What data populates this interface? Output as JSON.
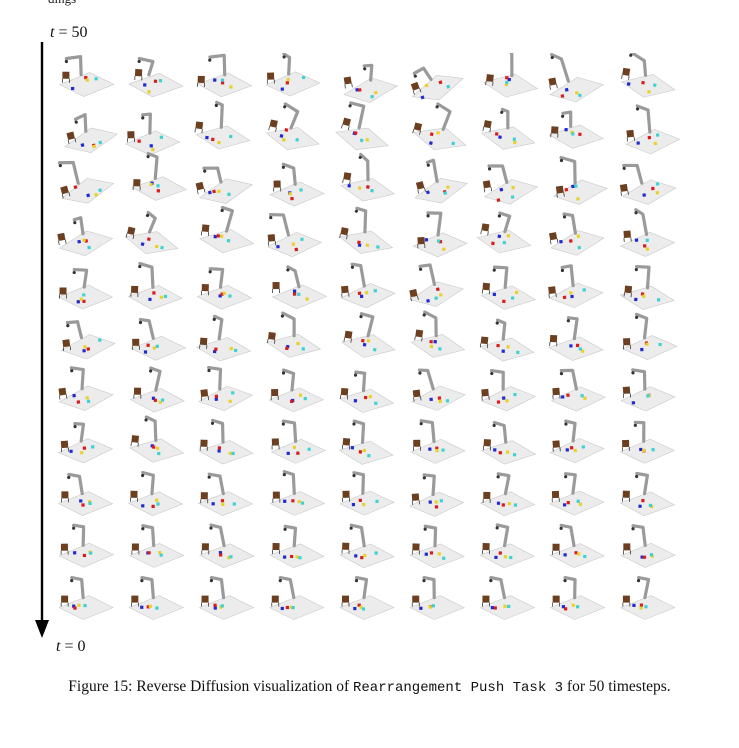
{
  "page_fragment": "dings",
  "axis": {
    "top_label_var": "t",
    "top_label_value": "50",
    "bottom_label_var": "t",
    "bottom_label_value": "0"
  },
  "figure": {
    "rows": 11,
    "cols": 9,
    "description_rows_order": "reverse diffusion frames from t=50 (top) to t=0 (bottom)",
    "colors": {
      "table": "#ececec",
      "table_edge": "#c9c9c9",
      "robot": "#9a9a9a",
      "box": "#6b3f1f",
      "blue": "#1f2bd1",
      "red": "#d91c1c",
      "yellow": "#e9d12a",
      "cyan": "#3fd2d2"
    }
  },
  "caption": {
    "prefix": "Figure 15: Reverse Diffusion visualization of ",
    "code": "Rearrangement Push Task 3",
    "middle": " for ",
    "number": "50",
    "suffix": " timesteps."
  }
}
